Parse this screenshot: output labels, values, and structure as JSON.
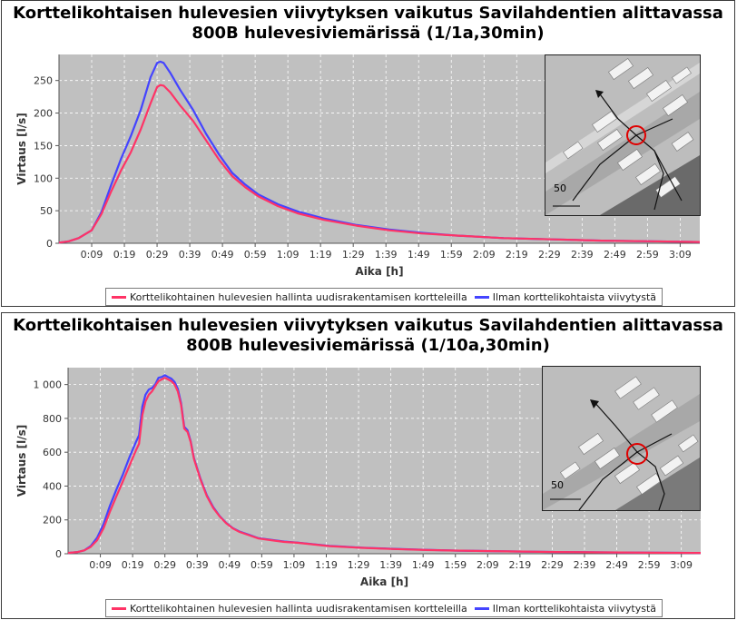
{
  "chart_data": [
    {
      "type": "line",
      "title_line1": "Korttelikohtaisen hulevesien viivytyksen vaikutus Savilahdentien alittavassa",
      "title_line2": "800B hulevesiviemärissä (1/1a,30min)",
      "xlabel": "Aika [h]",
      "ylabel": "Virtaus [l/s]",
      "ylim": [
        0,
        290
      ],
      "y_ticks": [
        "0",
        "50",
        "100",
        "150",
        "200",
        "250"
      ],
      "y_tick_values": [
        0,
        50,
        100,
        150,
        200,
        250
      ],
      "x_tick_labels": [
        "0:09",
        "0:19",
        "0:29",
        "0:39",
        "0:49",
        "0:59",
        "1:09",
        "1:19",
        "1:29",
        "1:39",
        "1:49",
        "1:59",
        "2:09",
        "2:19",
        "2:29",
        "2:39",
        "2:49",
        "2:59",
        "3:09"
      ],
      "x_tick_minutes": [
        9,
        19,
        29,
        39,
        49,
        59,
        69,
        79,
        89,
        99,
        109,
        119,
        129,
        139,
        149,
        159,
        169,
        179,
        189
      ],
      "xlim_minutes": [
        -1,
        195
      ],
      "grid": true,
      "legend_position": "bottom",
      "series": [
        {
          "name": "Korttelikohtainen hulevesien hallinta uudisrakentamisen kortteleilla",
          "color": "#ff3366",
          "x": [
            -1,
            2,
            5,
            9,
            12,
            15,
            18,
            21,
            24,
            27,
            29,
            30,
            31,
            33,
            36,
            40,
            44,
            48,
            52,
            56,
            60,
            66,
            72,
            80,
            90,
            100,
            110,
            120,
            135,
            150,
            165,
            180,
            195
          ],
          "y": [
            1,
            3,
            8,
            20,
            45,
            80,
            112,
            140,
            175,
            215,
            240,
            243,
            242,
            232,
            212,
            188,
            158,
            128,
            103,
            86,
            72,
            57,
            46,
            36,
            27,
            20,
            15,
            12,
            8,
            6,
            4,
            3,
            2
          ]
        },
        {
          "name": "Ilman korttelikohtaista viivytystä",
          "color": "#4444ff",
          "x": [
            -1,
            2,
            5,
            9,
            12,
            15,
            18,
            21,
            24,
            27,
            29,
            30,
            31,
            33,
            36,
            40,
            44,
            48,
            52,
            56,
            60,
            66,
            72,
            80,
            90,
            100,
            110,
            120,
            135,
            150,
            165,
            180,
            195
          ],
          "y": [
            1,
            3,
            8,
            20,
            48,
            90,
            130,
            165,
            205,
            255,
            277,
            279,
            277,
            262,
            236,
            205,
            168,
            136,
            108,
            90,
            75,
            60,
            49,
            38,
            28,
            21,
            16,
            12,
            8,
            6,
            4,
            3,
            2
          ]
        }
      ]
    },
    {
      "type": "line",
      "title_line1": "Korttelikohtaisen hulevesien viivytyksen vaikutus Savilahdentien alittavassa",
      "title_line2": "800B hulevesiviemärissä (1/10a,30min)",
      "xlabel": "Aika [h]",
      "ylabel": "Virtaus [l/s]",
      "ylim": [
        0,
        1100
      ],
      "y_ticks": [
        "0",
        "200",
        "400",
        "600",
        "800",
        "1 000"
      ],
      "y_tick_values": [
        0,
        200,
        400,
        600,
        800,
        1000
      ],
      "x_tick_labels": [
        "0:09",
        "0:19",
        "0:29",
        "0:39",
        "0:49",
        "0:59",
        "1:09",
        "1:19",
        "1:29",
        "1:39",
        "1:49",
        "1:59",
        "2:09",
        "2:19",
        "2:29",
        "2:39",
        "2:49",
        "2:59",
        "3:09"
      ],
      "x_tick_minutes": [
        9,
        19,
        29,
        39,
        49,
        59,
        69,
        79,
        89,
        99,
        109,
        119,
        129,
        139,
        149,
        159,
        169,
        179,
        189
      ],
      "xlim_minutes": [
        -1,
        195
      ],
      "grid": true,
      "legend_position": "bottom",
      "series": [
        {
          "name": "Korttelikohtainen hulevesien hallinta uudisrakentamisen kortteleilla",
          "color": "#ff3366",
          "x": [
            -1,
            2,
            4,
            6,
            8,
            10,
            12,
            14,
            16,
            18,
            20,
            21,
            22,
            23,
            24,
            25,
            26,
            27,
            28,
            29,
            30,
            31,
            32,
            33,
            34,
            35,
            36,
            37,
            38,
            40,
            42,
            44,
            46,
            48,
            50,
            52,
            55,
            58,
            62,
            66,
            70,
            80,
            90,
            100,
            110,
            120,
            135,
            150,
            165,
            180,
            195
          ],
          "y": [
            5,
            10,
            20,
            40,
            80,
            150,
            250,
            340,
            430,
            520,
            610,
            650,
            820,
            900,
            940,
            960,
            990,
            1020,
            1030,
            1040,
            1030,
            1020,
            1000,
            960,
            880,
            740,
            720,
            660,
            560,
            440,
            340,
            270,
            220,
            180,
            150,
            130,
            110,
            90,
            80,
            70,
            65,
            45,
            35,
            28,
            22,
            18,
            14,
            10,
            8,
            6,
            5
          ]
        },
        {
          "name": "Ilman korttelikohtaista viivytystä",
          "color": "#4444ff",
          "x": [
            -1,
            2,
            4,
            6,
            8,
            10,
            12,
            14,
            16,
            18,
            20,
            21,
            22,
            23,
            24,
            25,
            26,
            27,
            28,
            29,
            30,
            31,
            32,
            33,
            34,
            35,
            36,
            37,
            38,
            40,
            42,
            44,
            46,
            48,
            50,
            52,
            55,
            58,
            62,
            66,
            70,
            80,
            90,
            100,
            110,
            120,
            135,
            150,
            165,
            180,
            195
          ],
          "y": [
            5,
            10,
            20,
            45,
            95,
            175,
            285,
            380,
            470,
            570,
            660,
            700,
            870,
            940,
            970,
            980,
            1000,
            1040,
            1045,
            1055,
            1045,
            1035,
            1015,
            975,
            890,
            750,
            730,
            665,
            565,
            445,
            345,
            275,
            222,
            182,
            152,
            132,
            112,
            92,
            82,
            72,
            66,
            46,
            36,
            29,
            23,
            18,
            14,
            10,
            8,
            6,
            5
          ]
        }
      ]
    }
  ],
  "inset": {
    "scale_label": "50"
  }
}
